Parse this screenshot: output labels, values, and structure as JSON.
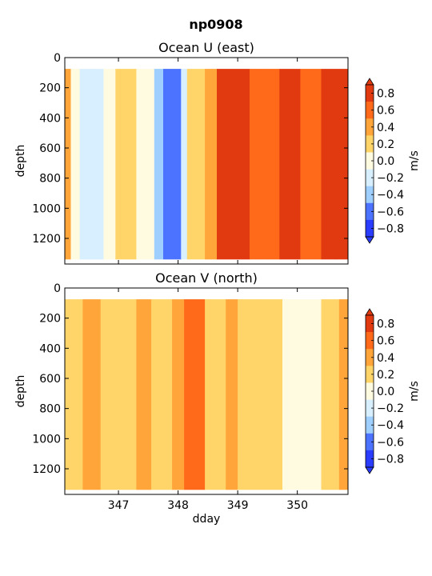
{
  "suptitle": "np0908",
  "colormap": [
    "#2a3cff",
    "#4c73ff",
    "#9fcfff",
    "#d8efff",
    "#fffbe0",
    "#ffd56a",
    "#ffa53a",
    "#ff6a1a",
    "#e23a10"
  ],
  "levels": [
    -0.8,
    -0.6,
    -0.4,
    -0.2,
    0.0,
    0.2,
    0.4,
    0.6,
    0.8
  ],
  "chart_data": [
    {
      "type": "heatmap",
      "title": "Ocean U (east)",
      "ylabel": "depth",
      "xlabel": "",
      "xlim": [
        346.1,
        350.85
      ],
      "ylim": [
        1370,
        0
      ],
      "y_ticks": [
        0,
        200,
        400,
        600,
        800,
        1000,
        1200
      ],
      "x_ticks": [
        347,
        348,
        349,
        350
      ],
      "x_ticklabels_visible": false,
      "data_depth_range": [
        75,
        1340
      ],
      "colorbar": {
        "label": "m/s",
        "ticks": [
          "0.8",
          "0.6",
          "0.4",
          "0.2",
          "0.0",
          "−0.2",
          "−0.4",
          "−0.6",
          "−0.8"
        ]
      },
      "segments": [
        {
          "start": 346.1,
          "end": 346.2,
          "value": 0.3
        },
        {
          "start": 346.2,
          "end": 346.35,
          "value": -0.05
        },
        {
          "start": 346.35,
          "end": 346.6,
          "value": -0.35
        },
        {
          "start": 346.6,
          "end": 346.75,
          "value": -0.25
        },
        {
          "start": 346.75,
          "end": 346.95,
          "value": -0.15
        },
        {
          "start": 346.95,
          "end": 347.3,
          "value": 0.05
        },
        {
          "start": 347.3,
          "end": 347.6,
          "value": -0.1
        },
        {
          "start": 347.6,
          "end": 347.75,
          "value": -0.45
        },
        {
          "start": 347.75,
          "end": 348.05,
          "value": -0.65
        },
        {
          "start": 348.05,
          "end": 348.15,
          "value": -0.3
        },
        {
          "start": 348.15,
          "end": 348.45,
          "value": 0.15
        },
        {
          "start": 348.45,
          "end": 348.65,
          "value": 0.35
        },
        {
          "start": 348.65,
          "end": 349.2,
          "value": 0.65
        },
        {
          "start": 349.2,
          "end": 349.5,
          "value": 0.55
        },
        {
          "start": 349.5,
          "end": 349.7,
          "value": 0.45
        },
        {
          "start": 349.7,
          "end": 350.05,
          "value": 0.75
        },
        {
          "start": 350.05,
          "end": 350.4,
          "value": 0.5
        },
        {
          "start": 350.4,
          "end": 350.65,
          "value": 0.6
        },
        {
          "start": 350.65,
          "end": 350.85,
          "value": 0.7
        }
      ]
    },
    {
      "type": "heatmap",
      "title": "Ocean V (north)",
      "ylabel": "depth",
      "xlabel": "dday",
      "xlim": [
        346.1,
        350.85
      ],
      "ylim": [
        1370,
        0
      ],
      "y_ticks": [
        0,
        200,
        400,
        600,
        800,
        1000,
        1200
      ],
      "x_ticks": [
        347,
        348,
        349,
        350
      ],
      "x_ticklabels_visible": true,
      "data_depth_range": [
        75,
        1340
      ],
      "colorbar": {
        "label": "m/s",
        "ticks": [
          "0.8",
          "0.6",
          "0.4",
          "0.2",
          "0.0",
          "−0.2",
          "−0.4",
          "−0.6",
          "−0.8"
        ]
      },
      "segments": [
        {
          "start": 346.1,
          "end": 346.4,
          "value": 0.15
        },
        {
          "start": 346.4,
          "end": 346.7,
          "value": 0.22
        },
        {
          "start": 346.7,
          "end": 347.0,
          "value": 0.05
        },
        {
          "start": 347.0,
          "end": 347.3,
          "value": 0.1
        },
        {
          "start": 347.3,
          "end": 347.55,
          "value": 0.25
        },
        {
          "start": 347.55,
          "end": 347.9,
          "value": 0.12
        },
        {
          "start": 347.9,
          "end": 348.1,
          "value": 0.25
        },
        {
          "start": 348.1,
          "end": 348.45,
          "value": 0.45
        },
        {
          "start": 348.45,
          "end": 348.8,
          "value": 0.1
        },
        {
          "start": 348.8,
          "end": 349.0,
          "value": 0.22
        },
        {
          "start": 349.0,
          "end": 349.4,
          "value": 0.12
        },
        {
          "start": 349.4,
          "end": 349.75,
          "value": 0.05
        },
        {
          "start": 349.75,
          "end": 350.1,
          "value": -0.05
        },
        {
          "start": 350.1,
          "end": 350.4,
          "value": -0.1
        },
        {
          "start": 350.4,
          "end": 350.7,
          "value": 0.02
        },
        {
          "start": 350.7,
          "end": 350.85,
          "value": 0.25
        }
      ]
    }
  ]
}
